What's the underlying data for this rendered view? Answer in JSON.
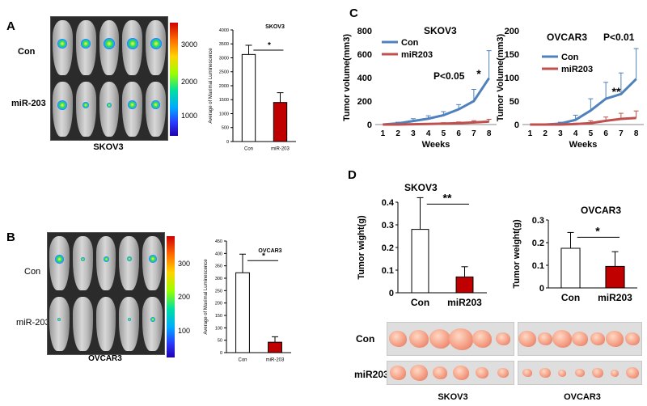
{
  "panels": {
    "A": {
      "letter": "A",
      "row_labels": [
        "Con",
        "miR-203"
      ],
      "image_caption": "SKOV3",
      "colorbar_ticks": [
        "3000",
        "2000",
        "1000"
      ]
    },
    "B": {
      "letter": "B",
      "row_labels": [
        "Con",
        "miR-203"
      ],
      "image_caption": "OVCAR3",
      "colorbar_ticks": [
        "300",
        "200",
        "100"
      ]
    },
    "C": {
      "letter": "C"
    },
    "D": {
      "letter": "D",
      "photo_row_labels": [
        "Con",
        "miR203"
      ],
      "photo_captions": [
        "SKOV3",
        "OVCAR3"
      ]
    }
  },
  "chart_data": [
    {
      "id": "A-bar",
      "type": "bar",
      "title": "SKOV3",
      "ylabel": "Average of Maximal Luminescence",
      "categories": [
        "Con",
        "miR-203"
      ],
      "values": [
        3120,
        1400
      ],
      "errors": [
        330,
        350
      ],
      "ylim": [
        0,
        4000
      ],
      "yticks": [
        "0",
        "500",
        "1000",
        "1500",
        "2000",
        "2500",
        "3000",
        "3500",
        "4000"
      ],
      "bar_colors": [
        "#ffffff",
        "#c00000"
      ],
      "significance": "*"
    },
    {
      "id": "B-bar",
      "type": "bar",
      "title": "OVCAR3",
      "ylabel": "Average of Maximal Luminescence",
      "categories": [
        "Con",
        "miR-203"
      ],
      "values": [
        322,
        42
      ],
      "errors": [
        75,
        22
      ],
      "ylim": [
        0,
        450
      ],
      "yticks": [
        "0",
        "50",
        "100",
        "150",
        "200",
        "250",
        "300",
        "350",
        "400",
        "450"
      ],
      "bar_colors": [
        "#ffffff",
        "#c00000"
      ],
      "significance": "*"
    },
    {
      "id": "C-skov3",
      "type": "line",
      "title": "SKOV3",
      "xlabel": "Weeks",
      "ylabel": "Tumor volume(mm3)",
      "x": [
        1,
        2,
        3,
        4,
        5,
        6,
        7,
        8
      ],
      "xticks": [
        "1",
        "2",
        "3",
        "4",
        "5",
        "6",
        "7",
        "8"
      ],
      "ylim": [
        0,
        800
      ],
      "yticks": [
        "0",
        "200",
        "400",
        "600",
        "800"
      ],
      "series": [
        {
          "name": "Con",
          "color": "#4f81bd",
          "values": [
            0,
            10,
            30,
            50,
            80,
            130,
            200,
            395
          ],
          "errors": [
            0,
            10,
            20,
            25,
            30,
            40,
            100,
            235
          ]
        },
        {
          "name": "miR203",
          "color": "#c0504d",
          "values": [
            0,
            0,
            3,
            5,
            8,
            12,
            18,
            25
          ],
          "errors": [
            0,
            0,
            3,
            5,
            8,
            10,
            15,
            20
          ]
        }
      ],
      "annotations": [
        "*",
        "P<0.05"
      ]
    },
    {
      "id": "C-ovcar3",
      "type": "line",
      "title": "OVCAR3",
      "xlabel": "Weeks",
      "ylabel": "Tumor Volume(mm3)",
      "x": [
        1,
        2,
        3,
        4,
        5,
        6,
        7,
        8
      ],
      "xticks": [
        "1",
        "2",
        "3",
        "4",
        "5",
        "6",
        "7",
        "8"
      ],
      "ylim": [
        0,
        200
      ],
      "yticks": [
        "0",
        "50",
        "100",
        "150",
        "200"
      ],
      "series": [
        {
          "name": "Con",
          "color": "#4f81bd",
          "values": [
            0,
            0,
            2,
            10,
            30,
            55,
            65,
            97
          ],
          "errors": [
            0,
            0,
            3,
            10,
            25,
            35,
            45,
            65
          ]
        },
        {
          "name": "miR203",
          "color": "#c0504d",
          "values": [
            0,
            0,
            0,
            1,
            3,
            8,
            12,
            14
          ],
          "errors": [
            0,
            0,
            0,
            2,
            5,
            8,
            12,
            15
          ]
        }
      ],
      "annotations": [
        "**",
        "P<0.01"
      ]
    },
    {
      "id": "D-skov3",
      "type": "bar",
      "title": "SKOV3",
      "ylabel": "Tumor wight(g)",
      "categories": [
        "Con",
        "miR203"
      ],
      "values": [
        0.28,
        0.07
      ],
      "errors": [
        0.14,
        0.045
      ],
      "ylim": [
        0,
        0.4
      ],
      "yticks": [
        "0",
        "0.1",
        "0.2",
        "0.3",
        "0.4"
      ],
      "bar_colors": [
        "#ffffff",
        "#c00000"
      ],
      "significance": "**"
    },
    {
      "id": "D-ovcar3",
      "type": "bar",
      "title": "OVCAR3",
      "ylabel": "Tumor weight(g)",
      "categories": [
        "Con",
        "miR203"
      ],
      "values": [
        0.175,
        0.095
      ],
      "errors": [
        0.07,
        0.065
      ],
      "ylim": [
        0,
        0.3
      ],
      "yticks": [
        "0",
        "0.1",
        "0.2",
        "0.3"
      ],
      "bar_colors": [
        "#ffffff",
        "#c00000"
      ],
      "significance": "*"
    }
  ]
}
